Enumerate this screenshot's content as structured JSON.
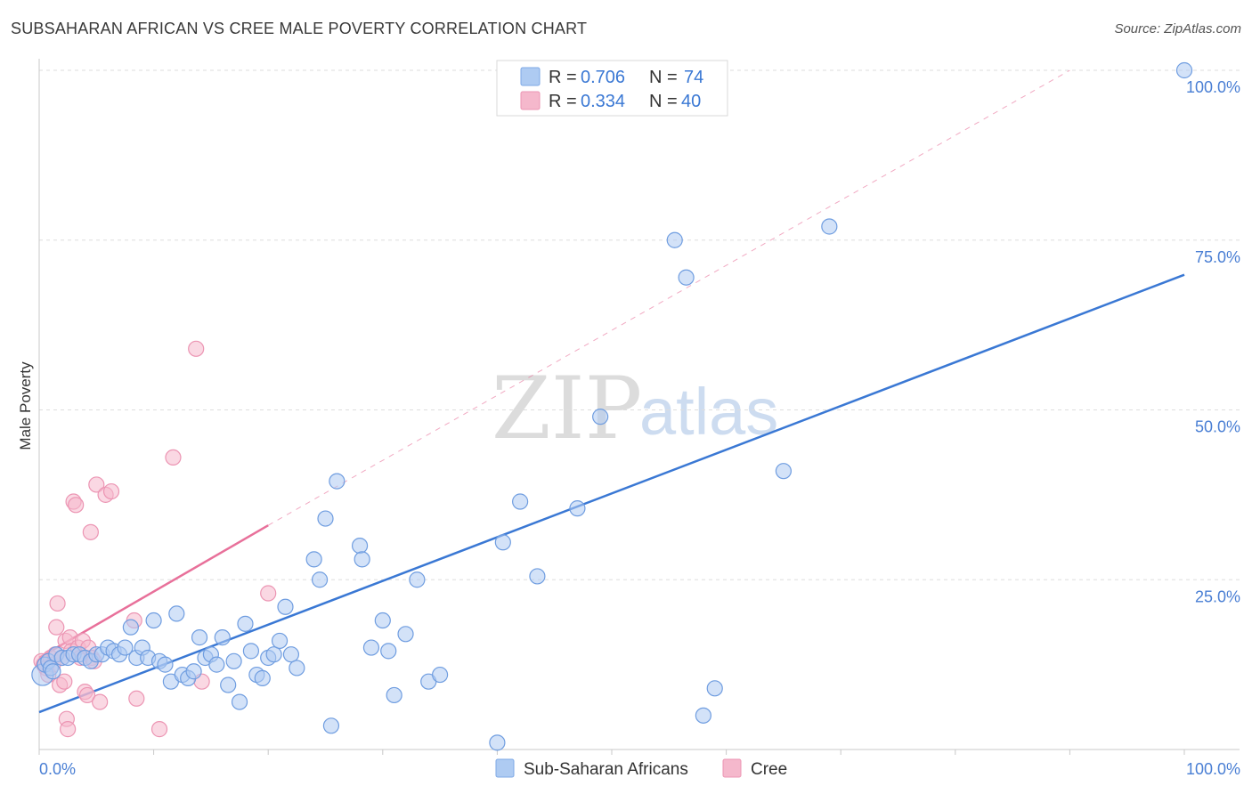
{
  "title": "SUBSAHARAN AFRICAN VS CREE MALE POVERTY CORRELATION CHART",
  "source": "Source: ZipAtlas.com",
  "watermark": {
    "zip": "ZIP",
    "atlas": "atlas"
  },
  "colors": {
    "blue": "#3a78d4",
    "blue_fill": "#aecbf2",
    "pink": "#e8709a",
    "pink_fill": "#f5b8cc",
    "grid": "#dddddd",
    "tick_text": "#4a7fd4"
  },
  "legend_top": {
    "r_label": "R = ",
    "n_label": "N = ",
    "rows": [
      {
        "series": "Sub-Saharan Africans",
        "r": "0.706",
        "n": "74"
      },
      {
        "series": "Cree",
        "r": "0.334",
        "n": "40"
      }
    ]
  },
  "chart_data": {
    "type": "scatter",
    "ylabel": "Male Poverty",
    "xlim": [
      0,
      100
    ],
    "ylim": [
      0,
      100
    ],
    "x_tick_labels": [
      "0.0%",
      "100.0%"
    ],
    "y_tick_labels": [
      "25.0%",
      "50.0%",
      "75.0%",
      "100.0%"
    ],
    "y_ticks": [
      25,
      50,
      75,
      100
    ],
    "grid": "horizontal dashed",
    "legend_position": "top-center and bottom",
    "series": [
      {
        "name": "Sub-Saharan Africans",
        "color": "#3a78d4",
        "trend": {
          "x": [
            0,
            100
          ],
          "y": [
            5.5,
            69.9
          ],
          "style": "solid"
        },
        "points": [
          [
            0.3,
            11
          ],
          [
            0.5,
            12.5
          ],
          [
            0.8,
            13
          ],
          [
            1,
            12
          ],
          [
            1.2,
            11.5
          ],
          [
            1.5,
            14
          ],
          [
            2,
            13.5
          ],
          [
            2.5,
            13.5
          ],
          [
            3,
            14
          ],
          [
            3.5,
            14
          ],
          [
            4,
            13.5
          ],
          [
            4.5,
            13
          ],
          [
            5,
            14
          ],
          [
            5.5,
            14
          ],
          [
            6,
            15
          ],
          [
            6.5,
            14.5
          ],
          [
            7,
            14
          ],
          [
            7.5,
            15
          ],
          [
            8,
            18
          ],
          [
            8.5,
            13.5
          ],
          [
            9,
            15
          ],
          [
            9.5,
            13.5
          ],
          [
            10,
            19
          ],
          [
            10.5,
            13
          ],
          [
            11,
            12.5
          ],
          [
            11.5,
            10
          ],
          [
            12,
            20
          ],
          [
            12.5,
            11
          ],
          [
            13,
            10.5
          ],
          [
            13.5,
            11.5
          ],
          [
            14,
            16.5
          ],
          [
            14.5,
            13.5
          ],
          [
            15,
            14
          ],
          [
            15.5,
            12.5
          ],
          [
            16,
            16.5
          ],
          [
            16.5,
            9.5
          ],
          [
            17,
            13
          ],
          [
            17.5,
            7
          ],
          [
            18,
            18.5
          ],
          [
            18.5,
            14.5
          ],
          [
            19,
            11
          ],
          [
            19.5,
            10.5
          ],
          [
            20,
            13.5
          ],
          [
            20.5,
            14
          ],
          [
            21,
            16
          ],
          [
            21.5,
            21
          ],
          [
            22,
            14
          ],
          [
            22.5,
            12
          ],
          [
            24,
            28
          ],
          [
            24.5,
            25
          ],
          [
            25,
            34
          ],
          [
            25.5,
            3.5
          ],
          [
            26,
            39.5
          ],
          [
            28,
            30
          ],
          [
            28.2,
            28
          ],
          [
            29,
            15
          ],
          [
            30,
            19
          ],
          [
            30.5,
            14.5
          ],
          [
            31,
            8
          ],
          [
            32,
            17
          ],
          [
            33,
            25
          ],
          [
            34,
            10
          ],
          [
            35,
            11
          ],
          [
            40,
            1
          ],
          [
            40.5,
            30.5
          ],
          [
            42,
            36.5
          ],
          [
            43.5,
            25.5
          ],
          [
            47,
            35.5
          ],
          [
            49,
            49
          ],
          [
            55.5,
            75
          ],
          [
            56.5,
            69.5
          ],
          [
            58,
            5
          ],
          [
            59,
            9
          ],
          [
            65,
            41
          ],
          [
            69,
            77
          ],
          [
            100,
            100
          ]
        ]
      },
      {
        "name": "Cree",
        "color": "#e8709a",
        "trend": {
          "x": [
            0,
            20
          ],
          "y": [
            13.5,
            33
          ],
          "style": "solid",
          "extension": {
            "x": [
              20,
              90
            ],
            "y": [
              33,
              100
            ],
            "style": "dashed"
          }
        },
        "points": [
          [
            0.2,
            13
          ],
          [
            0.4,
            12.5
          ],
          [
            0.6,
            12
          ],
          [
            0.8,
            11
          ],
          [
            1,
            13.5
          ],
          [
            1.2,
            12.5
          ],
          [
            1.4,
            14
          ],
          [
            1.5,
            18
          ],
          [
            1.6,
            21.5
          ],
          [
            1.8,
            9.5
          ],
          [
            2,
            13.5
          ],
          [
            2.2,
            10
          ],
          [
            2.3,
            16
          ],
          [
            2.4,
            4.5
          ],
          [
            2.5,
            3
          ],
          [
            2.7,
            16.5
          ],
          [
            2.8,
            14.5
          ],
          [
            3,
            36.5
          ],
          [
            3.2,
            36
          ],
          [
            3.4,
            15
          ],
          [
            3.6,
            13.5
          ],
          [
            3.8,
            16
          ],
          [
            4,
            8.5
          ],
          [
            4.2,
            8
          ],
          [
            4.3,
            15
          ],
          [
            4.5,
            32
          ],
          [
            4.6,
            13.5
          ],
          [
            4.8,
            13
          ],
          [
            5,
            39
          ],
          [
            5.3,
            7
          ],
          [
            5.8,
            37.5
          ],
          [
            6.3,
            38
          ],
          [
            8.3,
            19
          ],
          [
            8.5,
            7.5
          ],
          [
            10.5,
            3
          ],
          [
            11.7,
            43
          ],
          [
            13.7,
            59
          ],
          [
            14.2,
            10
          ],
          [
            20,
            23
          ]
        ]
      }
    ]
  },
  "bottom_legend": [
    {
      "label": "Sub-Saharan Africans"
    },
    {
      "label": "Cree"
    }
  ]
}
